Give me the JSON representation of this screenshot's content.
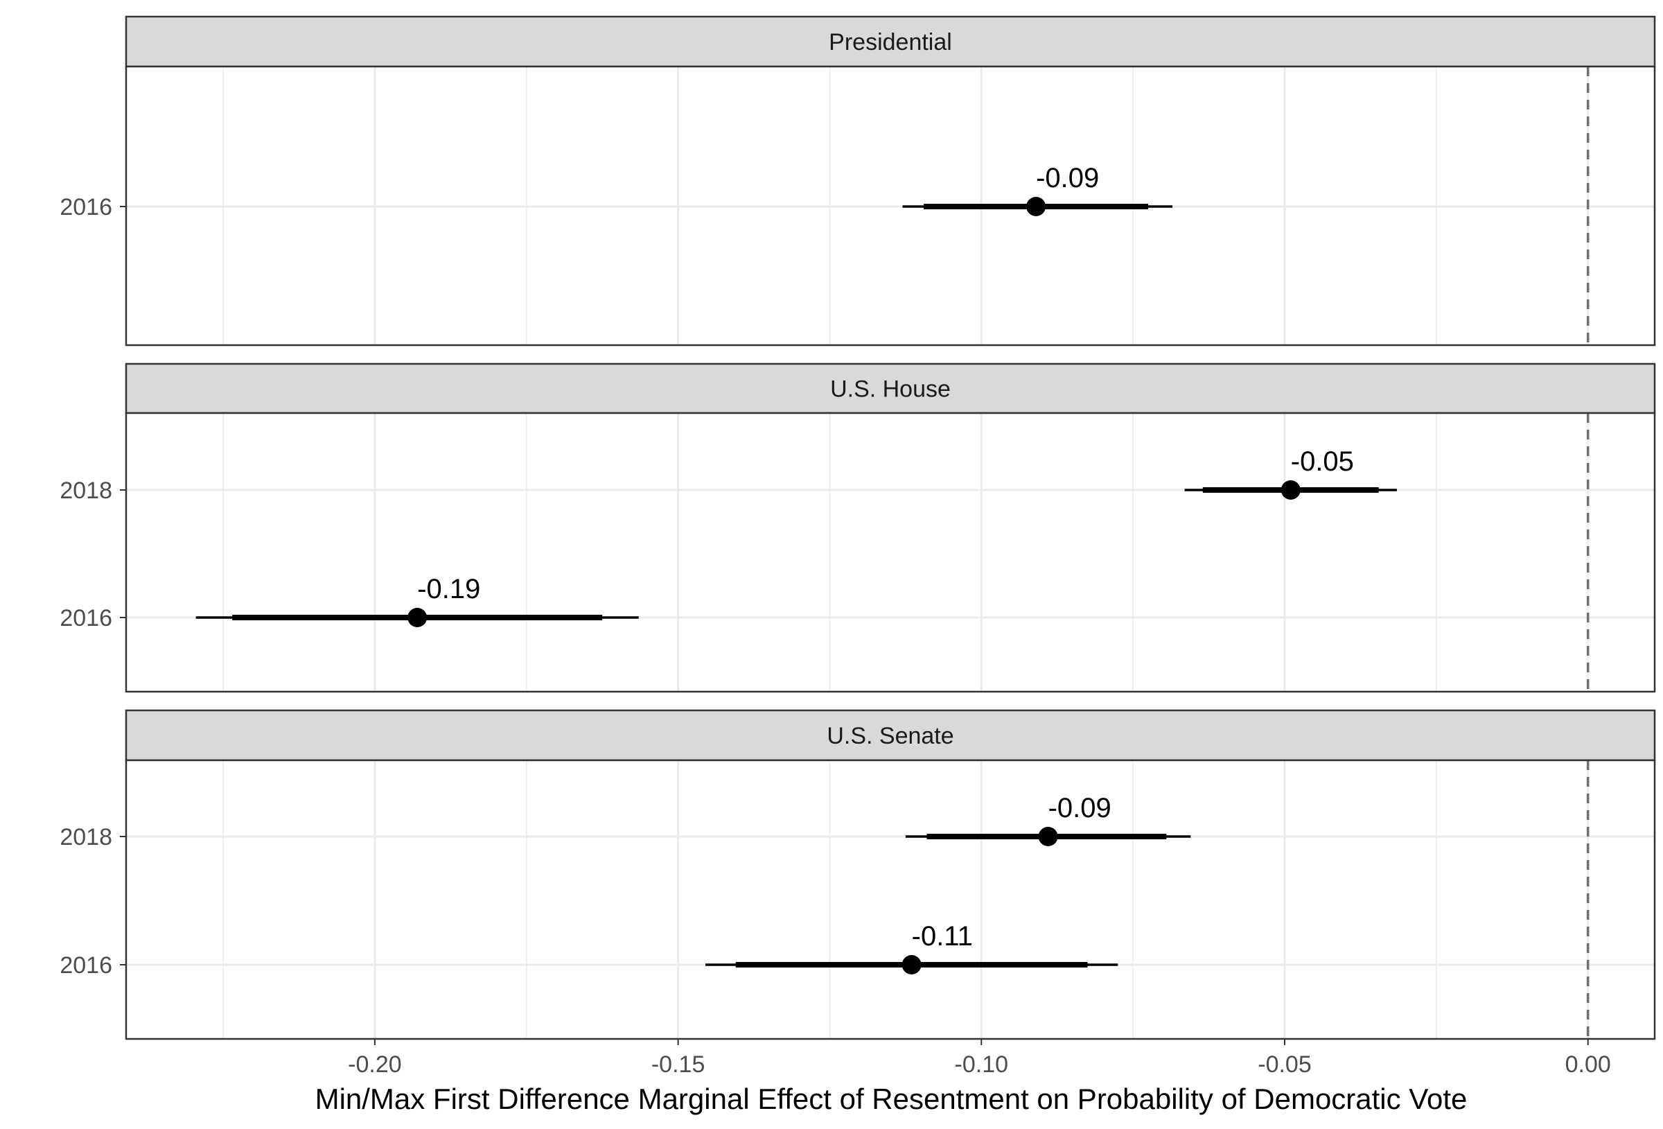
{
  "chart_data": {
    "type": "dotwhisker",
    "xlabel": "Min/Max First Difference Marginal Effect of Resentment on Probability of Democratic Vote",
    "xlim": [
      -0.241,
      0.011
    ],
    "xticks": [
      -0.2,
      -0.15,
      -0.1,
      -0.05,
      0.0
    ],
    "xtick_labels": [
      "-0.20",
      "-0.15",
      "-0.10",
      "-0.05",
      "0.00"
    ],
    "reference_line": 0.0,
    "grid": true,
    "panels": [
      {
        "title": "Presidential",
        "categories": [
          "2016"
        ],
        "points": [
          {
            "year": "2016",
            "estimate": -0.091,
            "label": "-0.09",
            "ci_inner": [
              -0.1095,
              -0.0725
            ],
            "ci_outer": [
              -0.113,
              -0.0685
            ]
          }
        ]
      },
      {
        "title": "U.S. House",
        "categories": [
          "2018",
          "2016"
        ],
        "points": [
          {
            "year": "2018",
            "estimate": -0.049,
            "label": "-0.05",
            "ci_inner": [
              -0.0635,
              -0.0345
            ],
            "ci_outer": [
              -0.0665,
              -0.0315
            ]
          },
          {
            "year": "2016",
            "estimate": -0.193,
            "label": "-0.19",
            "ci_inner": [
              -0.2235,
              -0.1625
            ],
            "ci_outer": [
              -0.2295,
              -0.1565
            ]
          }
        ]
      },
      {
        "title": "U.S. Senate",
        "categories": [
          "2018",
          "2016"
        ],
        "points": [
          {
            "year": "2018",
            "estimate": -0.089,
            "label": "-0.09",
            "ci_inner": [
              -0.109,
              -0.0695
            ],
            "ci_outer": [
              -0.1125,
              -0.0655
            ]
          },
          {
            "year": "2016",
            "estimate": -0.1115,
            "label": "-0.11",
            "ci_inner": [
              -0.1405,
              -0.0825
            ],
            "ci_outer": [
              -0.1455,
              -0.0775
            ]
          }
        ]
      }
    ]
  }
}
